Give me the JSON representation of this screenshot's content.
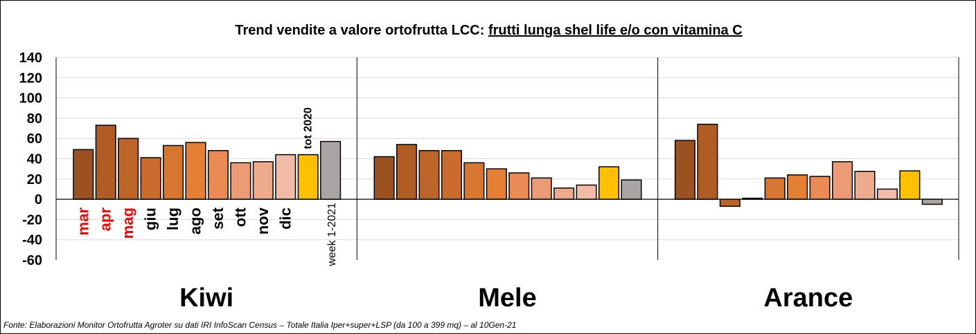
{
  "chart_data": {
    "type": "bar",
    "title": "Trend vendite a valore ortofrutta LCC:",
    "title_underlined": "frutti lunga shel life e/o con vitamina C",
    "ylim": [
      -60,
      140
    ],
    "yticks": [
      140,
      120,
      100,
      80,
      60,
      40,
      20,
      0,
      -20,
      -40,
      -60
    ],
    "categories": [
      "mar",
      "apr",
      "mag",
      "giu",
      "lug",
      "ago",
      "set",
      "ott",
      "nov",
      "dic",
      "tot 2020",
      "week 1-2021"
    ],
    "category_label_colors": [
      "#ff0000",
      "#ff0000",
      "#ff0000",
      "#000000",
      "#000000",
      "#000000",
      "#000000",
      "#000000",
      "#000000",
      "#000000",
      "#000000",
      "#000000"
    ],
    "bar_colors": [
      "#9c5220",
      "#b05c22",
      "#bd6428",
      "#c96c2e",
      "#d77630",
      "#e47f33",
      "#ea8b55",
      "#eb9b75",
      "#eeab8c",
      "#f1bba6",
      "#ffc000",
      "#a9a5a4"
    ],
    "groups": [
      {
        "name": "Kiwi",
        "values": [
          49,
          73,
          60,
          41,
          53,
          56,
          48,
          36,
          37,
          44,
          44,
          57
        ]
      },
      {
        "name": "Mele",
        "values": [
          42,
          54,
          48,
          48,
          36,
          30,
          26,
          21,
          11,
          14,
          32,
          19
        ]
      },
      {
        "name": "Arance",
        "values": [
          58,
          74,
          -7,
          1,
          21,
          24,
          22.5,
          37,
          27.5,
          10,
          28,
          -5
        ]
      }
    ],
    "grid": true
  },
  "source": "Fonte: Elaborazioni Monitor Ortofrutta Agroter su dati IRI InfoScan Census – Totale Italia Iper+super+LSP (da 100 a 399 mq) – al 10Gen-21"
}
